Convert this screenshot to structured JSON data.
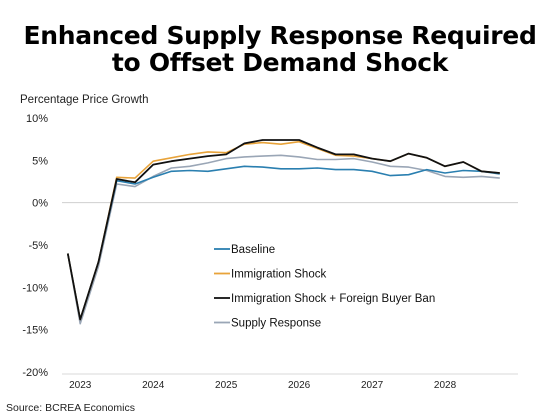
{
  "chart_data": {
    "type": "line",
    "title_lines": [
      "Enhanced Supply Response Required",
      "to Offset Demand Shock"
    ],
    "ylabel": "Percentage Price Growth",
    "source": "Source: BCREA Economics",
    "ylim": [
      -20,
      10
    ],
    "yticks": [
      {
        "value": 10,
        "label": "10%"
      },
      {
        "value": 5,
        "label": "5%"
      },
      {
        "value": 0,
        "label": "0%"
      },
      {
        "value": -5,
        "label": "-5%"
      },
      {
        "value": -10,
        "label": "-10%"
      },
      {
        "value": -15,
        "label": "-15%"
      },
      {
        "value": -20,
        "label": "-20%"
      }
    ],
    "xlim": [
      2022.75,
      2029.0
    ],
    "xticks": [
      {
        "value": 2023.0,
        "label": "2023"
      },
      {
        "value": 2024.0,
        "label": "2024"
      },
      {
        "value": 2025.0,
        "label": "2025"
      },
      {
        "value": 2026.0,
        "label": "2026"
      },
      {
        "value": 2027.0,
        "label": "2027"
      },
      {
        "value": 2028.0,
        "label": "2028"
      }
    ],
    "x": [
      2022.83,
      2023.0,
      2023.25,
      2023.5,
      2023.75,
      2024.0,
      2024.25,
      2024.5,
      2024.75,
      2025.0,
      2025.25,
      2025.5,
      2025.75,
      2026.0,
      2026.25,
      2026.5,
      2026.75,
      2027.0,
      2027.25,
      2027.5,
      2027.75,
      2028.0,
      2028.25,
      2028.5,
      2028.75
    ],
    "legend_position": "center",
    "grid": false,
    "series": [
      {
        "name": "Baseline",
        "color": "#2a7fb0",
        "values": [
          -6.0,
          -13.8,
          -7.0,
          2.6,
          2.2,
          3.0,
          3.7,
          3.8,
          3.7,
          4.0,
          4.3,
          4.2,
          4.0,
          4.0,
          4.1,
          3.9,
          3.9,
          3.7,
          3.2,
          3.3,
          3.9,
          3.5,
          3.8,
          3.7,
          3.4
        ]
      },
      {
        "name": "Immigration Shock",
        "color": "#e8a33a",
        "values": [
          -6.0,
          -13.8,
          -7.0,
          3.0,
          2.9,
          4.9,
          5.3,
          5.7,
          6.0,
          5.9,
          6.9,
          7.1,
          6.9,
          7.2,
          6.4,
          5.6,
          5.5,
          5.2,
          4.9,
          5.8,
          5.3,
          4.3,
          4.8,
          3.7,
          3.5
        ]
      },
      {
        "name": "Immigration Shock + Foreign Buyer Ban",
        "color": "#111111",
        "values": [
          -6.0,
          -13.8,
          -7.0,
          2.8,
          2.4,
          4.5,
          4.9,
          5.2,
          5.5,
          5.7,
          7.0,
          7.4,
          7.4,
          7.4,
          6.5,
          5.7,
          5.7,
          5.2,
          4.9,
          5.8,
          5.3,
          4.3,
          4.8,
          3.7,
          3.5
        ]
      },
      {
        "name": "Supply Response",
        "color": "#9aa6b6",
        "values": [
          -6.0,
          -14.3,
          -7.5,
          2.2,
          1.9,
          3.1,
          4.1,
          4.3,
          4.7,
          5.2,
          5.4,
          5.5,
          5.6,
          5.4,
          5.1,
          5.1,
          5.2,
          4.8,
          4.3,
          4.2,
          3.8,
          3.1,
          3.0,
          3.1,
          2.9
        ]
      }
    ]
  }
}
